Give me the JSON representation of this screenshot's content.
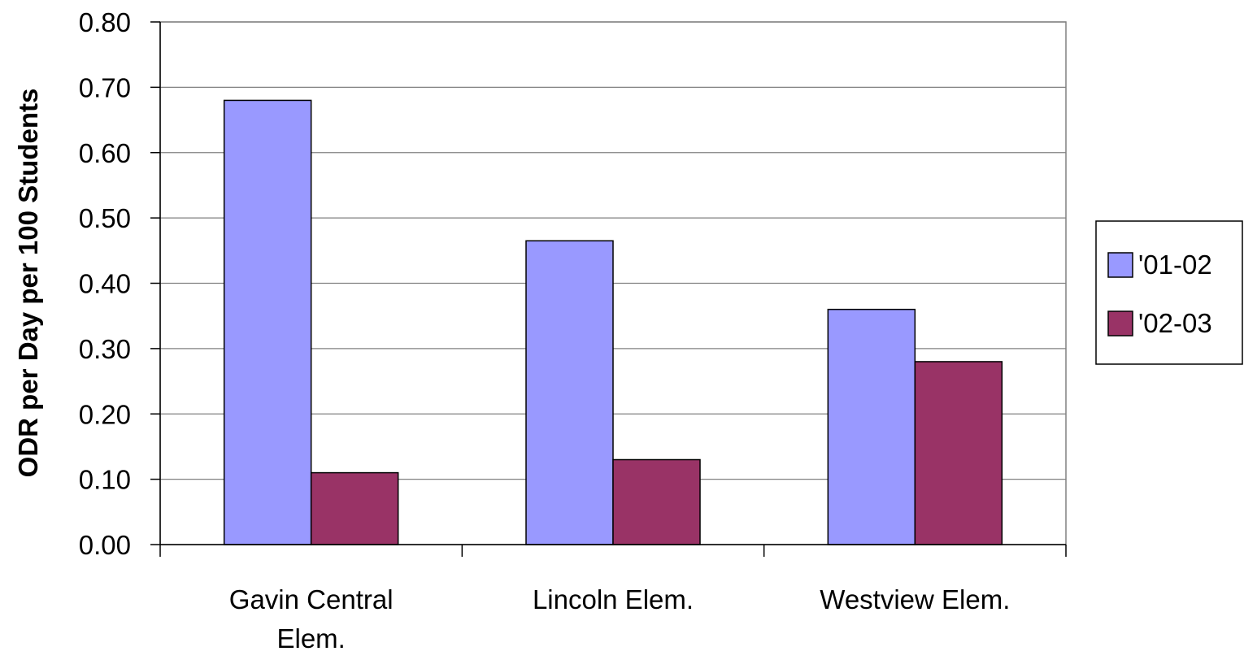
{
  "chart_data": {
    "type": "bar",
    "title": "",
    "xlabel": "",
    "ylabel": "ODR per Day per 100 Students",
    "categories": [
      [
        "Gavin Central",
        "Elem."
      ],
      [
        "Lincoln Elem."
      ],
      [
        "Westview Elem."
      ]
    ],
    "series": [
      {
        "name": "'01-02",
        "color": "#9999ff",
        "values": [
          0.68,
          0.465,
          0.36
        ]
      },
      {
        "name": "'02-03",
        "color": "#993366",
        "values": [
          0.11,
          0.13,
          0.28
        ]
      }
    ],
    "ylim": [
      0,
      0.8
    ],
    "yticks": [
      "0.00",
      "0.10",
      "0.20",
      "0.30",
      "0.40",
      "0.50",
      "0.60",
      "0.70",
      "0.80"
    ],
    "grid": true,
    "legend_position": "right"
  }
}
